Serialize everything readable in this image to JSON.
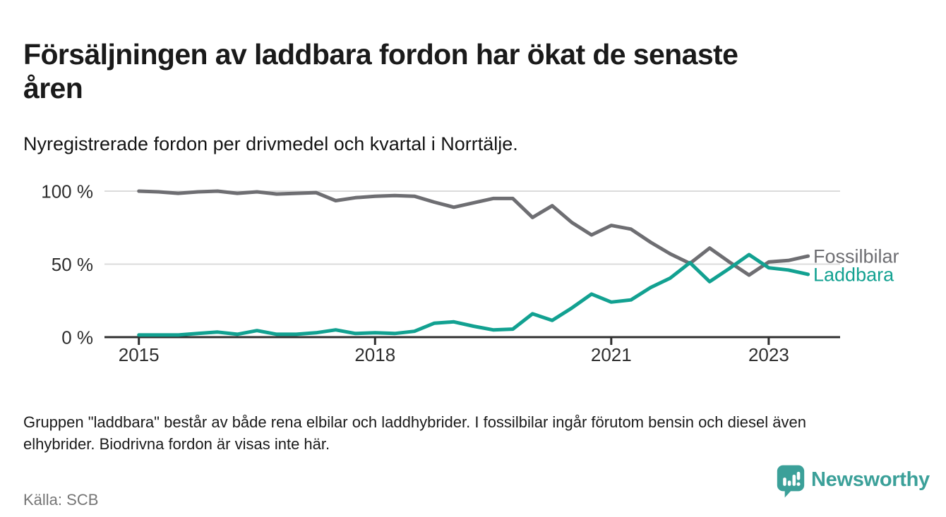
{
  "header": {
    "title": "Försäljningen av laddbara fordon har ökat de senaste\nåren",
    "subtitle": "Nyregistrerade fordon per drivmedel och kvartal i Norrtälje."
  },
  "chart_data": {
    "type": "line",
    "title": "Försäljningen av laddbara fordon har ökat de senaste åren",
    "xlabel": "",
    "ylabel": "",
    "x_unit": "quarter",
    "ylim": [
      0,
      100
    ],
    "grid": "horizontal",
    "legend_position": "right-end-of-lines",
    "x": [
      "2015 Q1",
      "2015 Q2",
      "2015 Q3",
      "2015 Q4",
      "2016 Q1",
      "2016 Q2",
      "2016 Q3",
      "2016 Q4",
      "2017 Q1",
      "2017 Q2",
      "2017 Q3",
      "2017 Q4",
      "2018 Q1",
      "2018 Q2",
      "2018 Q3",
      "2018 Q4",
      "2019 Q1",
      "2019 Q2",
      "2019 Q3",
      "2019 Q4",
      "2020 Q1",
      "2020 Q2",
      "2020 Q3",
      "2020 Q4",
      "2021 Q1",
      "2021 Q2",
      "2021 Q3",
      "2021 Q4",
      "2022 Q1",
      "2022 Q2",
      "2022 Q3",
      "2022 Q4",
      "2023 Q1",
      "2023 Q2",
      "2023 Q3"
    ],
    "x_ticks": [
      {
        "label": "2015",
        "quarter_index": 0
      },
      {
        "label": "2018",
        "quarter_index": 12
      },
      {
        "label": "2021",
        "quarter_index": 24
      },
      {
        "label": "2023",
        "quarter_index": 32
      }
    ],
    "y_ticks": [
      {
        "label": "100 %",
        "value": 100
      },
      {
        "label": "50 %",
        "value": 50
      },
      {
        "label": "0 %",
        "value": 0
      }
    ],
    "series": [
      {
        "name": "Fossilbilar",
        "color": "#6E6E72",
        "values": [
          100,
          99.5,
          98.5,
          99.5,
          100,
          98.5,
          99.5,
          98,
          98.5,
          99,
          93.5,
          95.5,
          96.5,
          97,
          96.5,
          92.5,
          89,
          92,
          95,
          95,
          82,
          90,
          78.5,
          70,
          76.5,
          74,
          65,
          57,
          50.5,
          61,
          51.5,
          42.5,
          51.5,
          52.5,
          55.5
        ]
      },
      {
        "name": "Laddbara",
        "color": "#12A191",
        "values": [
          1.5,
          1.5,
          1.5,
          2.5,
          3.5,
          2,
          4.5,
          2,
          2,
          3,
          5,
          2.5,
          3,
          2.5,
          4,
          9.5,
          10.5,
          7.5,
          5,
          5.5,
          16,
          11.5,
          20,
          29.5,
          24,
          25.5,
          34,
          40.5,
          51,
          38,
          47,
          56.5,
          47.5,
          46,
          43
        ]
      }
    ],
    "colors": {
      "grid": "#DBDBDB",
      "axis": "#2F2F2F",
      "tick_label": "#2E2E2E"
    }
  },
  "footer": {
    "note": "Gruppen \"laddbara\" består av både rena elbilar och laddhybrider. I fossilbilar ingår förutom bensin och diesel även\nelhybrider. Biodrivna fordon är visas inte här.",
    "source": "Källa: SCB",
    "brand": "Newsworthy"
  },
  "colors": {
    "accent_teal": "#12A191",
    "line_gray": "#6E6E72",
    "brand_teal": "#3BA099"
  }
}
